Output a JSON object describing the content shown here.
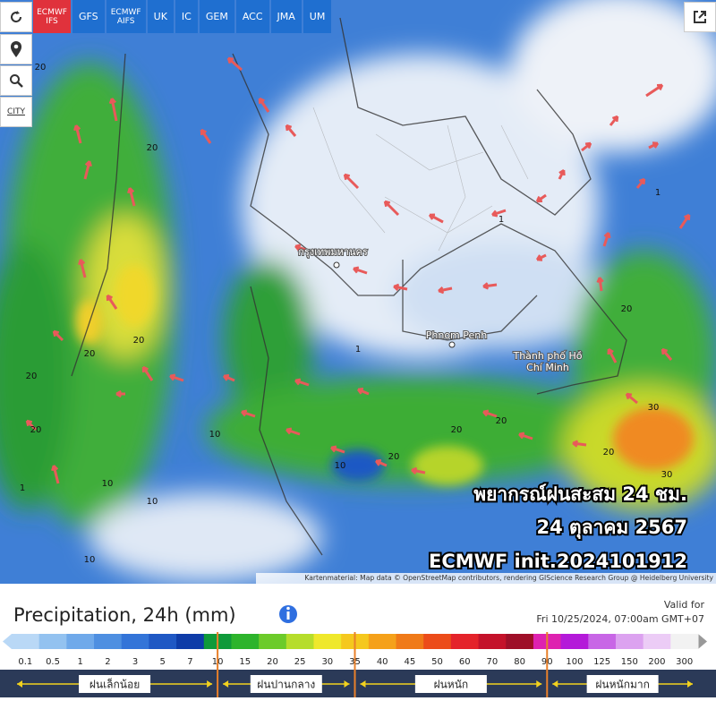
{
  "toolbar": {
    "models": [
      "ECMWF IFS",
      "GFS",
      "ECMWF AIFS",
      "UK",
      "IC",
      "GEM",
      "ACC",
      "JMA",
      "UM"
    ],
    "active_model": 0,
    "city_button": "CITY"
  },
  "map": {
    "places": {
      "bangkok": "กรุงเทพมหานคร",
      "phnom_penh": "Phnom Penh",
      "hcmc": "Thành phố Hồ Chí Minh"
    },
    "contour_labels": [
      "20",
      "20",
      "20",
      "10",
      "1",
      "20",
      "20",
      "20",
      "10",
      "20",
      "20",
      "20",
      "10",
      "10",
      "1",
      "1",
      "20",
      "30",
      "30",
      "20",
      "1",
      "10"
    ],
    "overlay": [
      "พยากรณ์ฝนสะสม 24 ชม.",
      "24 ตุลาคม 2567",
      "ECMWF init.2024101912"
    ],
    "attribution": "Kartenmaterial: Map data © OpenStreetMap contributors, rendering GIScience Research Group @ Heidelberg University"
  },
  "legend": {
    "title": "Precipitation, 24h (mm)",
    "valid_label": "Valid for",
    "valid_time": "Fri 10/25/2024, 07:00am GMT+07",
    "scale": {
      "values": [
        0.1,
        0.5,
        1,
        2,
        3,
        5,
        7,
        10,
        15,
        20,
        25,
        30,
        35,
        40,
        45,
        50,
        60,
        70,
        80,
        90,
        100,
        125,
        150,
        200,
        300
      ],
      "colors": [
        "#b9d8f6",
        "#93c2f0",
        "#6fa9ea",
        "#4e8fe1",
        "#3374d8",
        "#1f58c4",
        "#0e3ca8",
        "#0f9a3a",
        "#2db42c",
        "#6ccb2a",
        "#b6dd2b",
        "#efe82b",
        "#f5c81e",
        "#f5a11a",
        "#f07a18",
        "#ec4c1a",
        "#e4232a",
        "#c4122a",
        "#9e0f28",
        "#de22b0",
        "#b41ad9",
        "#c866e6",
        "#dca2f0",
        "#ecccf6",
        "#f2f2f2"
      ]
    },
    "bands": [
      "ฝนเล็กน้อย",
      "ฝนปานกลาง",
      "ฝนหนัก",
      "ฝนหนักมาก"
    ],
    "band_limits": [
      10,
      35,
      90
    ]
  }
}
